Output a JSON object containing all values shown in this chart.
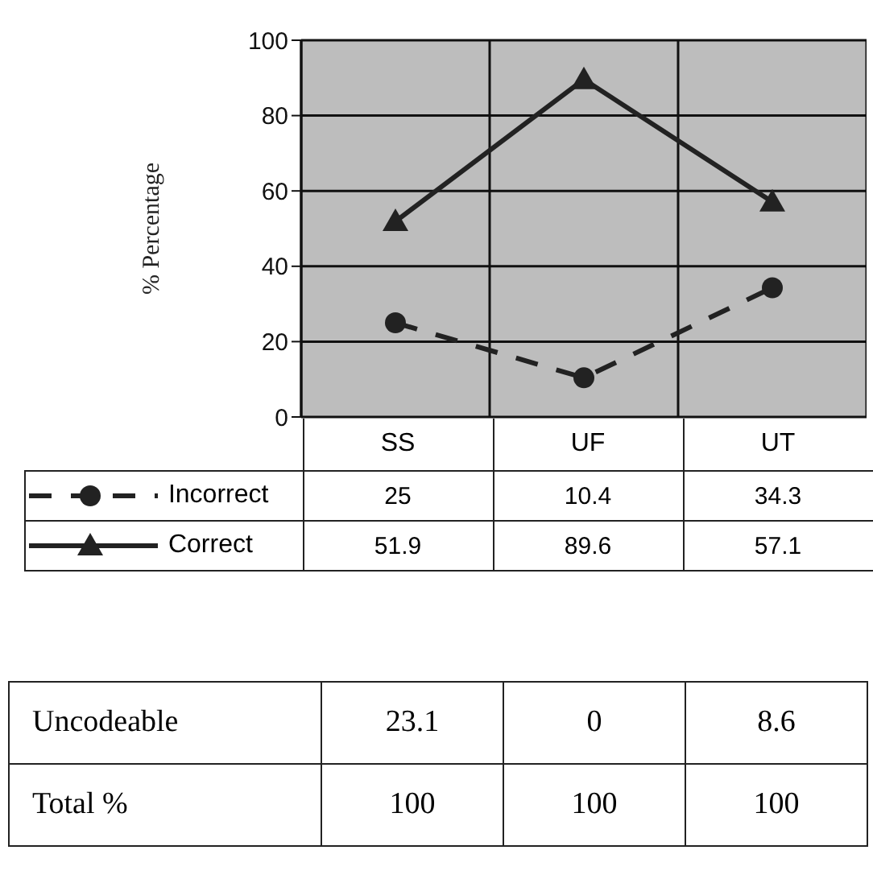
{
  "chart_data": {
    "type": "line",
    "ylabel": "% Percentage",
    "categories": [
      "SS",
      "UF",
      "UT"
    ],
    "series": [
      {
        "name": "Incorrect",
        "color": "#222222",
        "values": [
          25,
          10.4,
          34.3
        ],
        "marker": "circle",
        "line_style": "dashed"
      },
      {
        "name": "Correct",
        "color": "#222222",
        "values": [
          51.9,
          89.6,
          57.1
        ],
        "marker": "triangle",
        "line_style": "solid"
      }
    ],
    "ylim": [
      0,
      100
    ],
    "yticks": [
      0,
      20,
      40,
      60,
      80,
      100
    ],
    "grid": true,
    "legend": "bottom",
    "data_labels": true,
    "annotations": [
      "Uncodeable",
      "23.1",
      "0",
      "8.6",
      "Total %",
      "100",
      "100",
      "100"
    ]
  }
}
